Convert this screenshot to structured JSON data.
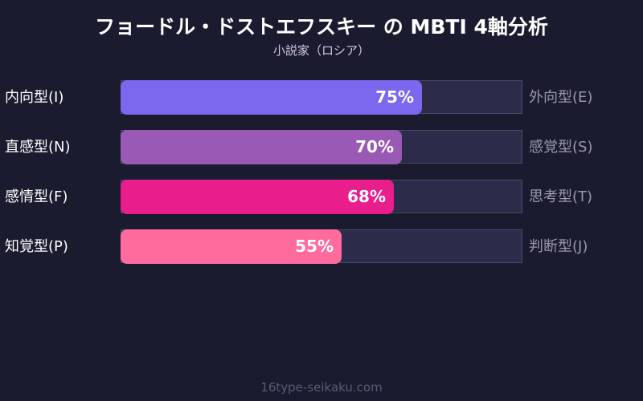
{
  "header": {
    "title": "フョードル・ドストエフスキー の MBTI 4軸分析",
    "subtitle": "小説家（ロシア）"
  },
  "rows": [
    {
      "left": "内向型(I)",
      "right": "外向型(E)",
      "value": 75,
      "value_label": "75%",
      "color": "#7b68ee"
    },
    {
      "left": "直感型(N)",
      "right": "感覚型(S)",
      "value": 70,
      "value_label": "70%",
      "color": "#9b59b6"
    },
    {
      "left": "感情型(F)",
      "right": "思考型(T)",
      "value": 68,
      "value_label": "68%",
      "color": "#e91e8c"
    },
    {
      "left": "知覚型(P)",
      "right": "判断型(J)",
      "value": 55,
      "value_label": "55%",
      "color": "#ff6b9d"
    }
  ],
  "footer": {
    "source": "16type-seikaku.com"
  },
  "chart_data": {
    "type": "bar",
    "orientation": "horizontal",
    "title": "フョードル・ドストエフスキー の MBTI 4軸分析",
    "subtitle": "小説家（ロシア）",
    "categories": [
      "内向型(I) / 外向型(E)",
      "直感型(N) / 感覚型(S)",
      "感情型(F) / 思考型(T)",
      "知覚型(P) / 判断型(J)"
    ],
    "left_labels": [
      "内向型(I)",
      "直感型(N)",
      "感情型(F)",
      "知覚型(P)"
    ],
    "right_labels": [
      "外向型(E)",
      "感覚型(S)",
      "思考型(T)",
      "判断型(J)"
    ],
    "values": [
      75,
      70,
      68,
      55
    ],
    "value_labels": [
      "75%",
      "70%",
      "68%",
      "55%"
    ],
    "colors": [
      "#7b68ee",
      "#9b59b6",
      "#e91e8c",
      "#ff6b9d"
    ],
    "xlim": [
      0,
      100
    ],
    "grid": false,
    "legend": false,
    "source": "16type-seikaku.com"
  }
}
